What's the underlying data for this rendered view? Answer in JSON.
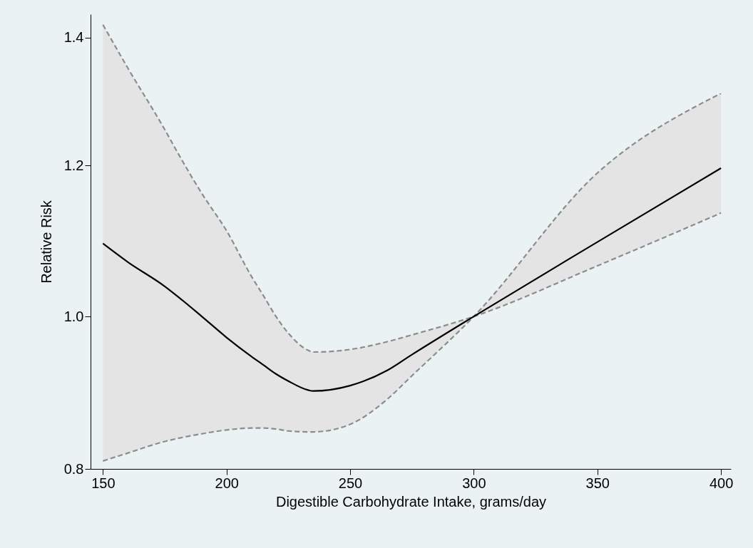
{
  "chart_data": {
    "type": "line",
    "xlabel": "Digestible Carbohydrate Intake, grams/day",
    "ylabel": "Relative Risk",
    "log": true,
    "grid": false,
    "x": [
      150,
      160,
      175,
      180,
      190,
      200,
      210,
      215,
      220,
      225,
      233,
      235,
      250,
      265,
      275,
      300,
      350,
      400
    ],
    "series": [
      {
        "color": "#000000",
        "line_style": "solid",
        "values": [
          1.092,
          1.068,
          1.037,
          1.025,
          1.0,
          0.975,
          0.953,
          0.943,
          0.933,
          0.925,
          0.915,
          0.914,
          0.92,
          0.937,
          0.955,
          1.0,
          1.094,
          1.196
        ],
        "upper": [
          1.422,
          1.35,
          1.253,
          1.22,
          1.16,
          1.109,
          1.05,
          1.025,
          1.0,
          0.98,
          0.96,
          0.958,
          0.961,
          0.97,
          0.978,
          1.0,
          1.063,
          1.133
        ],
        "lower": [
          0.84,
          0.848,
          0.86,
          0.863,
          0.868,
          0.872,
          0.874,
          0.874,
          0.873,
          0.871,
          0.87,
          0.87,
          0.878,
          0.905,
          0.931,
          1.0,
          1.189,
          1.309
        ]
      },
      {
        "color": "#8c8c8c",
        "line_style": "dashed",
        "values": [
          1.422,
          1.35,
          1.253,
          1.22,
          1.16,
          1.109,
          1.05,
          1.025,
          1.0,
          0.98,
          0.96,
          0.958,
          0.961,
          0.97,
          0.978,
          1.0,
          1.063,
          1.133
        ]
      },
      {
        "color": "#8c8c8c",
        "line_style": "dashed",
        "values": [
          0.84,
          0.848,
          0.86,
          0.863,
          0.868,
          0.872,
          0.874,
          0.874,
          0.873,
          0.871,
          0.87,
          0.87,
          0.878,
          0.905,
          0.931,
          1.0,
          1.189,
          1.309
        ]
      }
    ],
    "xlim": [
      145,
      404
    ],
    "xticks": [
      150,
      200,
      250,
      300,
      350,
      400
    ],
    "ylim": [
      0.832,
      1.44
    ],
    "yticks": [
      {
        "value": 0.832,
        "label": "0.8"
      },
      {
        "value": 1,
        "label": "1.0"
      },
      1.2,
      1.4
    ]
  }
}
